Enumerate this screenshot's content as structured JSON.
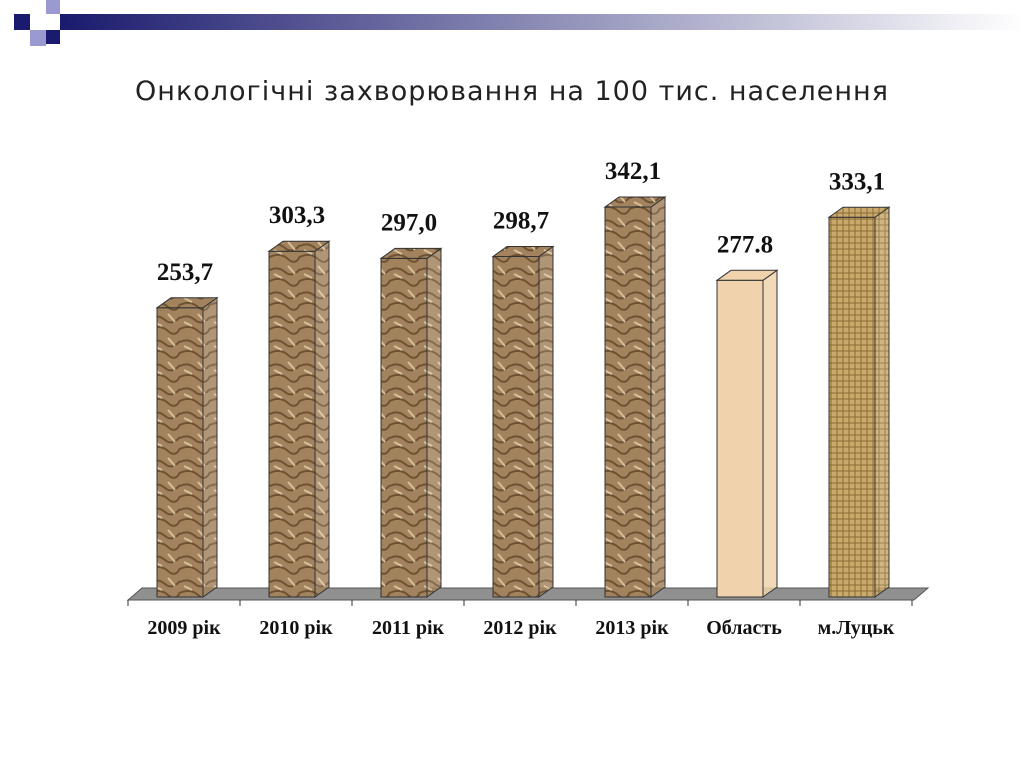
{
  "chart_data": {
    "type": "bar3d",
    "title": "Онкологічні захворювання на 100 тис. населення",
    "categories": [
      "2009 рік",
      "2010 рік",
      "2011 рік",
      "2012 рік",
      "2013 рік",
      "Область",
      "м.Луцьк"
    ],
    "values": [
      253.7,
      303.3,
      297.0,
      298.7,
      342.1,
      277.8,
      333.1
    ],
    "value_labels": [
      "253,7",
      "303,3",
      "297,0",
      "298,7",
      "342,1",
      "277.8",
      "333,1"
    ],
    "colors": [
      "#a2835e",
      "#a2835e",
      "#a2835e",
      "#a2835e",
      "#a2835e",
      "#f0d3ac",
      "#c9a96c"
    ]
  }
}
